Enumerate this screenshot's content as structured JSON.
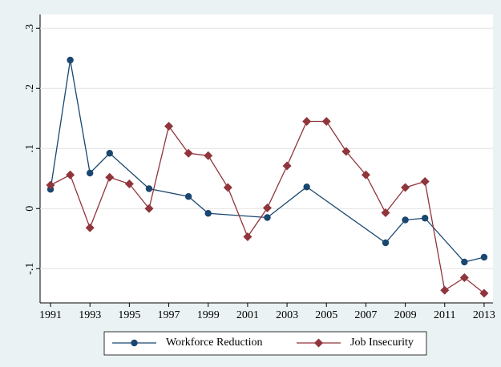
{
  "chart_data": {
    "type": "line",
    "xlim": [
      1990.47,
      2013.45
    ],
    "xticks": [
      1991,
      1993,
      1995,
      1997,
      1999,
      2001,
      2003,
      2005,
      2007,
      2009,
      2011,
      2013
    ],
    "ylim": [
      -0.157,
      0.323
    ],
    "yticks": [
      {
        "value": -0.1,
        "label": "-.1"
      },
      0,
      {
        "value": 0.1,
        "label": ".1"
      },
      {
        "value": 0.2,
        "label": ".2"
      },
      {
        "value": 0.3,
        "label": ".3"
      }
    ],
    "grid": true,
    "legend": "bottom",
    "series": [
      {
        "name": "Workforce Reduction",
        "color": "#1a476f",
        "marker": "circle",
        "x": [
          1991,
          1992,
          1993,
          1994,
          1996,
          1998,
          1999,
          2002,
          2004,
          2008,
          2009,
          2010,
          2012,
          2013
        ],
        "values": [
          0.032,
          0.247,
          0.059,
          0.092,
          0.033,
          0.02,
          -0.008,
          -0.015,
          0.036,
          -0.057,
          -0.019,
          -0.016,
          -0.089,
          -0.081
        ]
      },
      {
        "name": "Job Insecurity",
        "color": "#90353b",
        "marker": "diamond",
        "x": [
          1991,
          1992,
          1993,
          1994,
          1995,
          1996,
          1997,
          1998,
          1999,
          2000,
          2001,
          2002,
          2003,
          2004,
          2005,
          2006,
          2007,
          2008,
          2009,
          2010,
          2011,
          2012,
          2013
        ],
        "values": [
          0.039,
          0.056,
          -0.032,
          0.052,
          0.041,
          0,
          0.137,
          0.092,
          0.088,
          0.035,
          -0.047,
          0.001,
          0.071,
          0.145,
          0.145,
          0.095,
          0.056,
          -0.007,
          0.035,
          0.045,
          -0.136,
          -0.115,
          -0.141
        ]
      }
    ]
  }
}
